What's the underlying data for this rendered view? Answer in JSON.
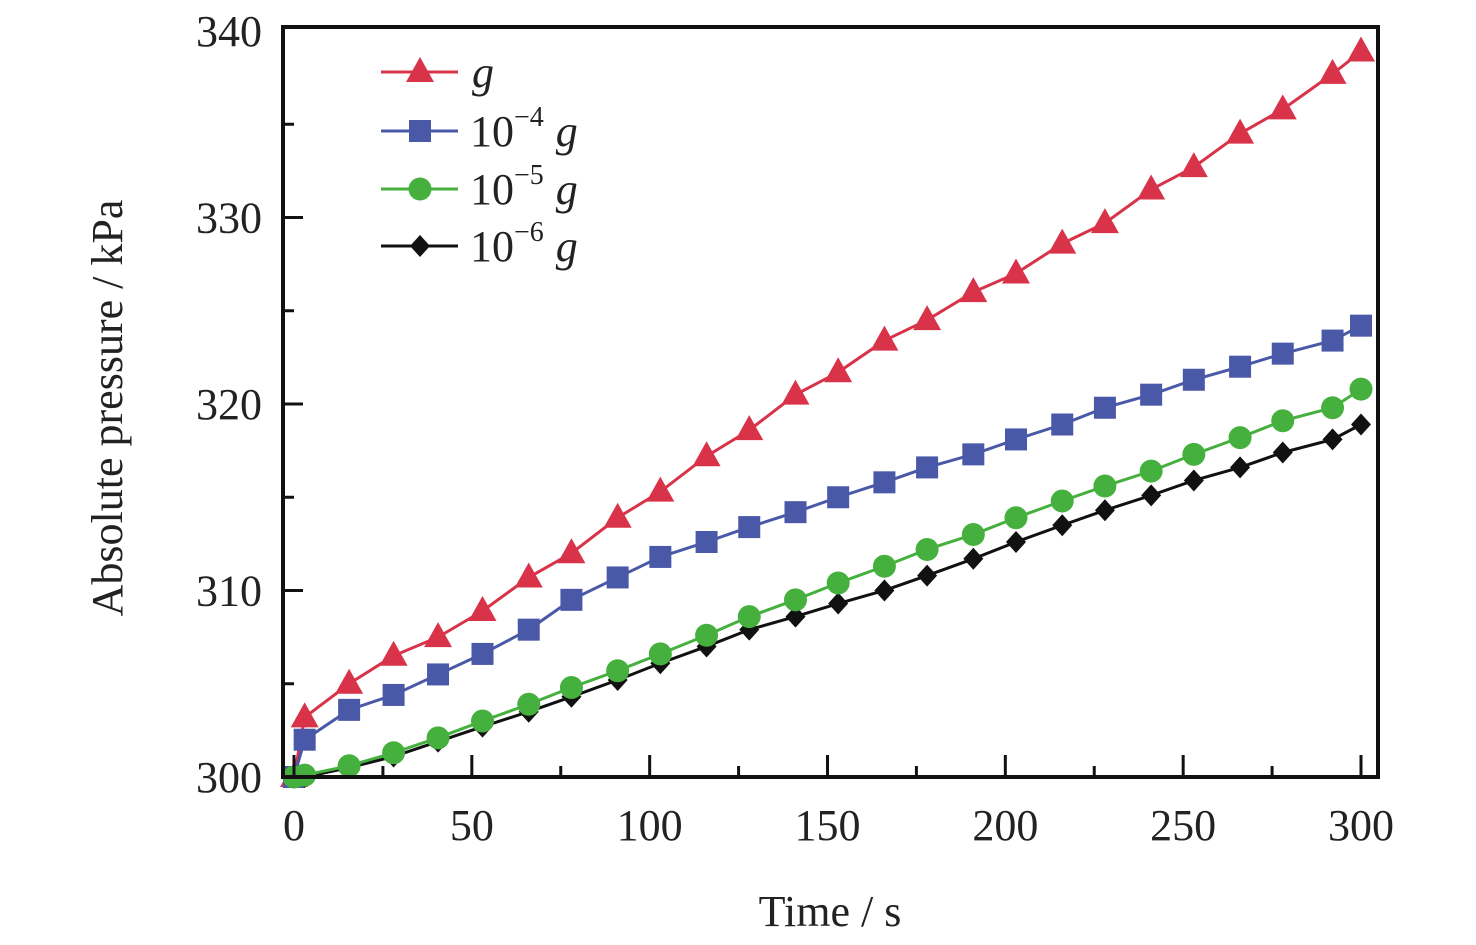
{
  "chart_data": {
    "type": "line",
    "title": "",
    "xlabel": "Time / s",
    "ylabel": "Absolute pressure / kPa",
    "xlim": [
      0,
      300
    ],
    "ylim": [
      300,
      340
    ],
    "xticks": [
      "0",
      "50",
      "100",
      "150",
      "200",
      "250",
      "300"
    ],
    "yticks": [
      "300",
      "310",
      "320",
      "330",
      "340"
    ],
    "xtick_values": [
      0,
      50,
      100,
      150,
      200,
      250,
      300
    ],
    "ytick_values": [
      300,
      310,
      320,
      330,
      340
    ],
    "grid": false,
    "legend_position": "top-left",
    "x": [
      0,
      3,
      15.5,
      28,
      40.5,
      53,
      66,
      78,
      91,
      103,
      116,
      128,
      141,
      153,
      166,
      178,
      191,
      203,
      216,
      228,
      241,
      253,
      266,
      278,
      292,
      300
    ],
    "series": [
      {
        "name": "g",
        "base": "",
        "exponent": "",
        "unit": "g",
        "color": "#d9334a",
        "marker": "triangle",
        "values": [
          300,
          303.2,
          305.0,
          306.5,
          307.5,
          308.9,
          310.7,
          312.0,
          313.9,
          315.3,
          317.2,
          318.6,
          320.5,
          321.7,
          323.4,
          324.5,
          326.0,
          327.0,
          328.6,
          329.7,
          331.5,
          332.7,
          334.5,
          335.8,
          337.7,
          338.9
        ]
      },
      {
        "name": "10^-4 g",
        "base": "10",
        "exponent": "−4",
        "unit": "g",
        "color": "#4a58a8",
        "marker": "square",
        "values": [
          300,
          302.0,
          303.6,
          304.4,
          305.5,
          306.6,
          307.9,
          309.5,
          310.7,
          311.8,
          312.6,
          313.4,
          314.2,
          315.0,
          315.8,
          316.6,
          317.3,
          318.1,
          318.9,
          319.8,
          320.5,
          321.3,
          322.0,
          322.7,
          323.4,
          324.2
        ]
      },
      {
        "name": "10^-5 g",
        "base": "10",
        "exponent": "−5",
        "unit": "g",
        "color": "#46b03f",
        "marker": "circle",
        "values": [
          300,
          300.1,
          300.6,
          301.3,
          302.1,
          303.0,
          303.9,
          304.8,
          305.7,
          306.6,
          307.6,
          308.6,
          309.5,
          310.4,
          311.3,
          312.2,
          313.0,
          313.9,
          314.8,
          315.6,
          316.4,
          317.3,
          318.2,
          319.1,
          319.8,
          320.8
        ]
      },
      {
        "name": "10^-6 g",
        "base": "10",
        "exponent": "−6",
        "unit": "g",
        "color": "#111111",
        "marker": "diamond",
        "values": [
          300,
          300.0,
          300.5,
          301.1,
          301.9,
          302.7,
          303.5,
          304.3,
          305.2,
          306.1,
          307.0,
          307.9,
          308.6,
          309.3,
          310.0,
          310.8,
          311.7,
          312.6,
          313.5,
          314.3,
          315.1,
          315.9,
          316.6,
          317.4,
          318.1,
          318.9
        ]
      }
    ]
  }
}
